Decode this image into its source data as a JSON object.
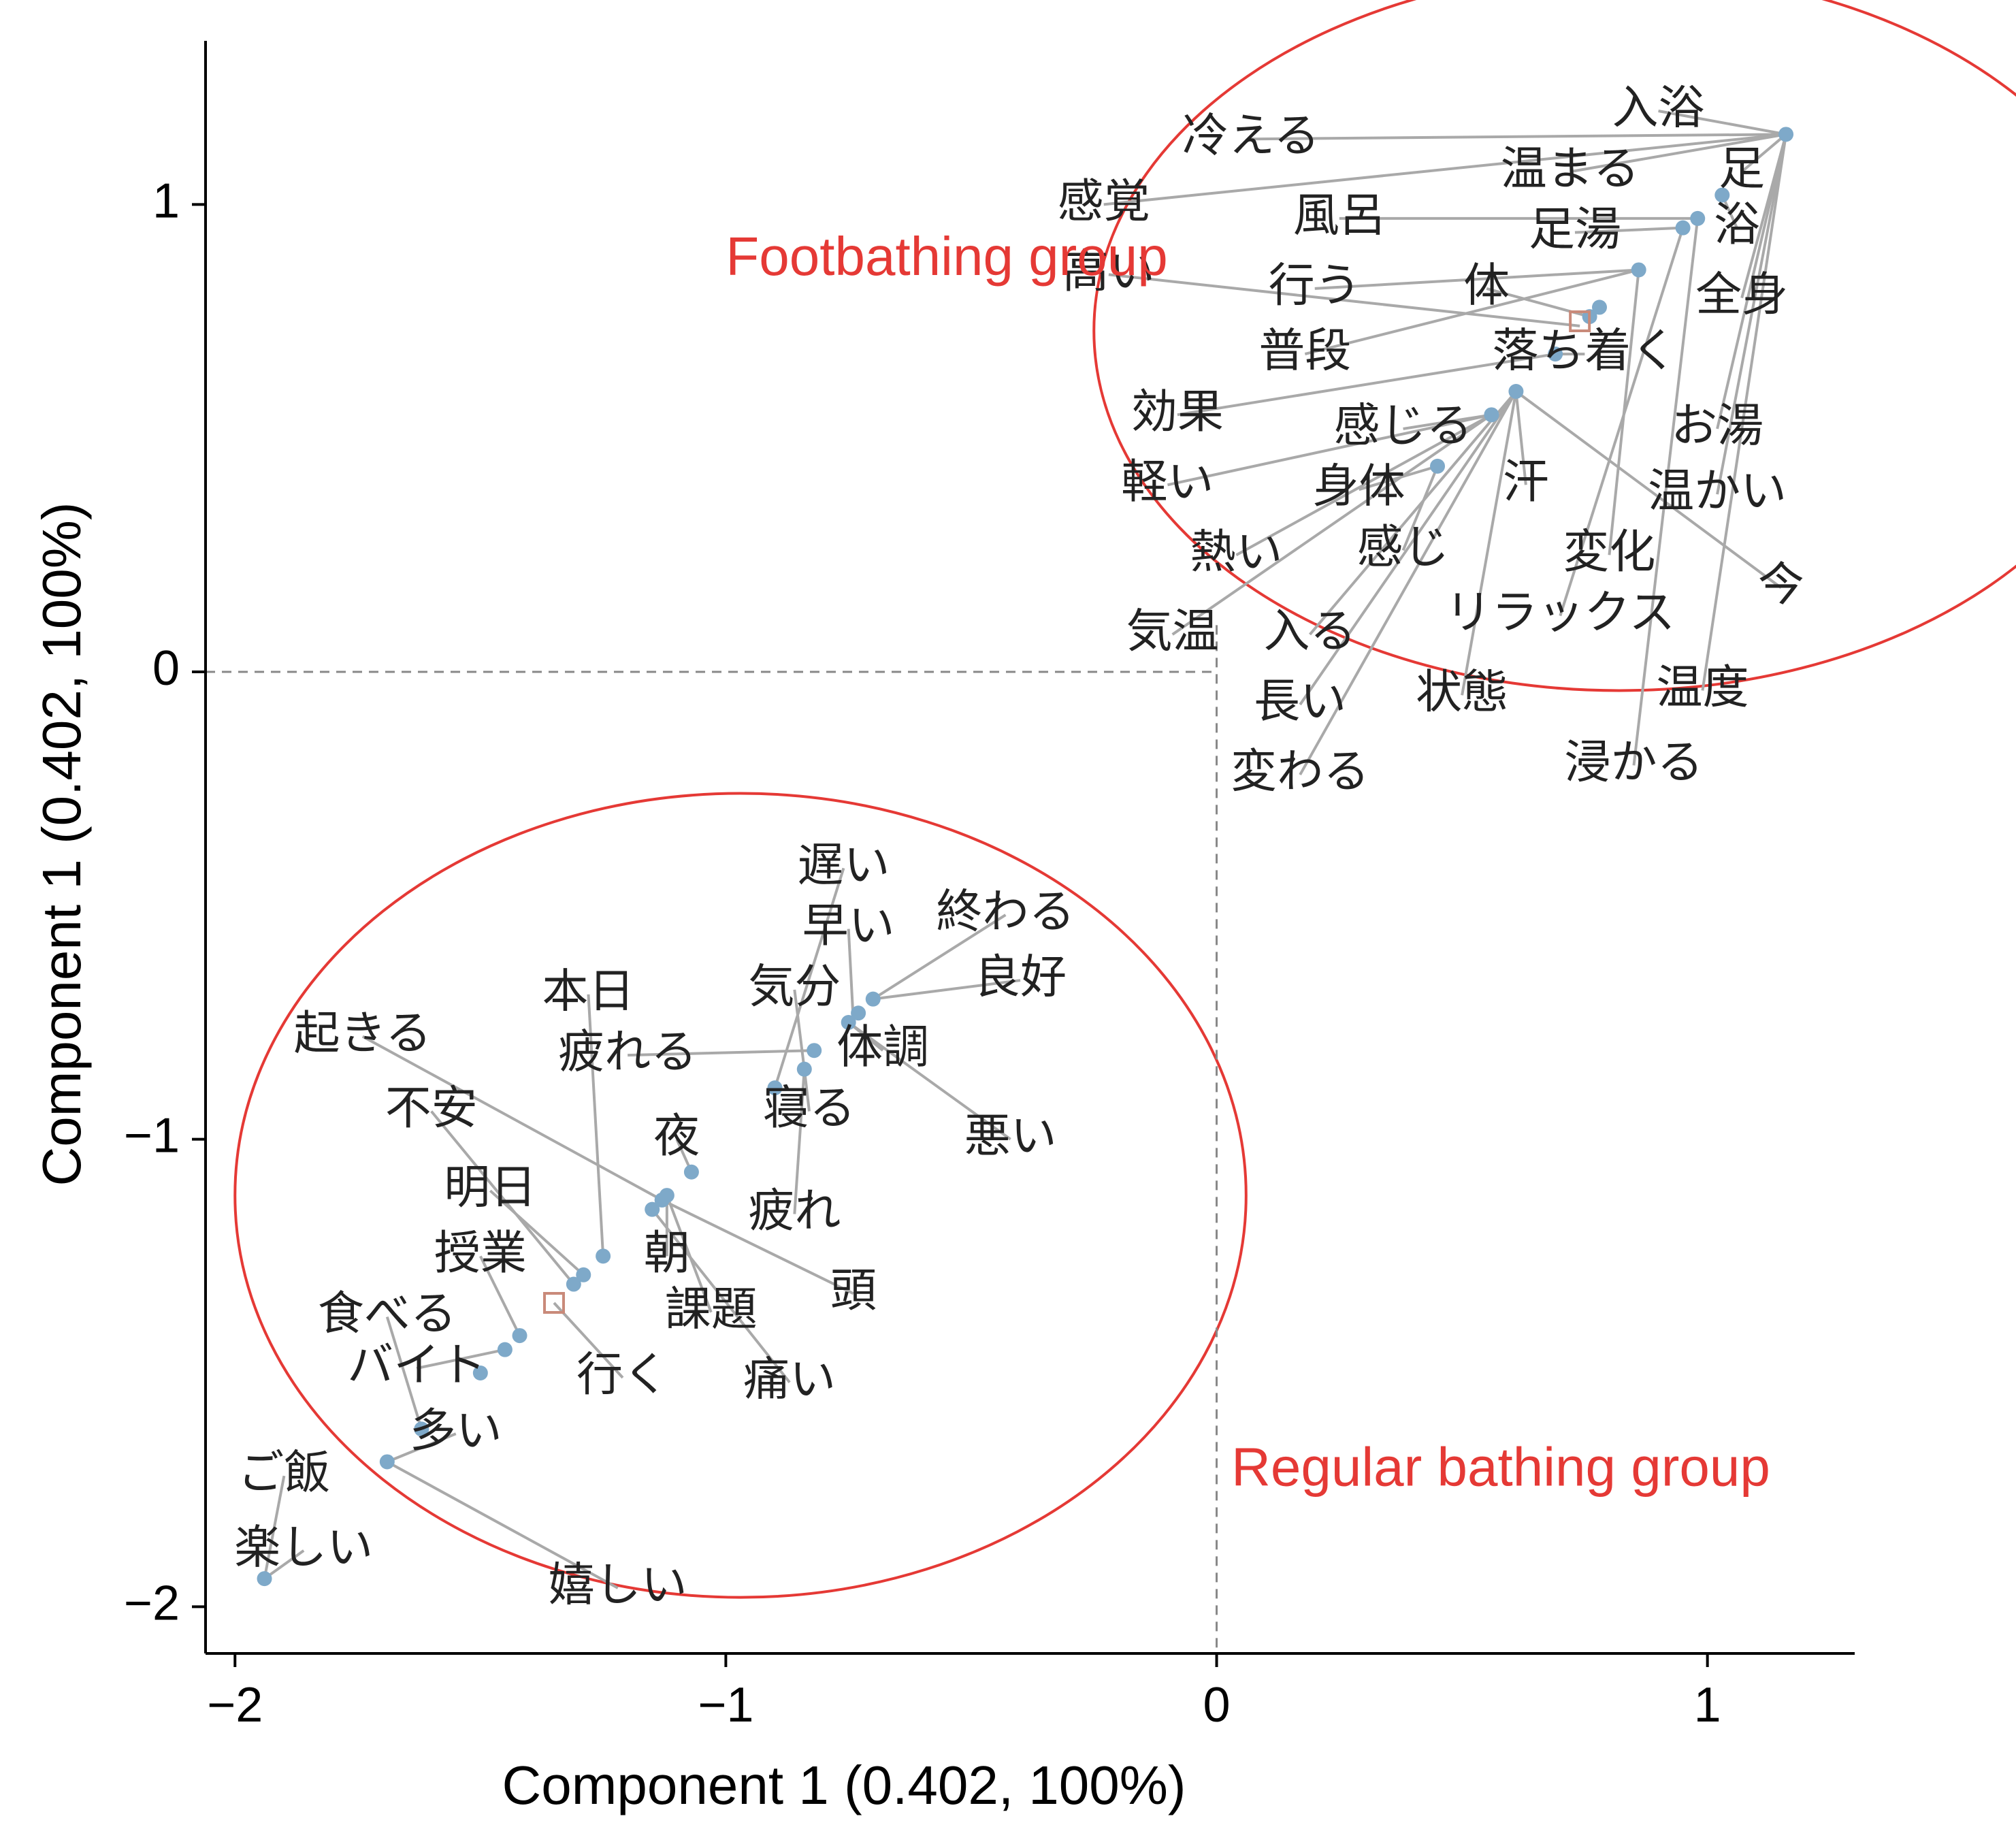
{
  "chart_data": {
    "type": "scatter",
    "title": "",
    "xlabel": "Component 1 (0.402, 100%)",
    "ylabel": "Component 1 (0.402, 100%)",
    "xlim": [
      -2.06,
      1.3
    ],
    "ylim": [
      -2.1,
      1.35
    ],
    "xticks": [
      -2,
      -1,
      0,
      1
    ],
    "yticks": [
      -2,
      -1,
      0,
      1
    ],
    "xtick_labels": [
      "−2",
      "−1",
      "0",
      "1"
    ],
    "ytick_labels": [
      "−2",
      "−1",
      "0",
      "1"
    ],
    "grid": false,
    "zero_lines": true,
    "colors": {
      "point": "#7ea9c9",
      "leader": "#a9a9a9",
      "group": "#e53935",
      "axis": "#000000"
    },
    "groups": [
      {
        "name": "Footbathing group",
        "center": [
          0.82,
          0.73
        ],
        "radius": [
          1.07,
          0.77
        ],
        "label_at": [
          -1.0,
          0.88
        ]
      },
      {
        "name": "Regular bathing group",
        "center": [
          -0.97,
          -1.12
        ],
        "radius": [
          1.03,
          0.86
        ],
        "label_at": [
          0.03,
          -1.71
        ]
      }
    ],
    "centroids": [
      [
        0.74,
        0.75
      ],
      [
        -1.35,
        -1.35
      ]
    ],
    "words": [
      {
        "text": "入浴",
        "x": 1.16,
        "y": 1.15,
        "lx": 0.9,
        "ly": 1.2
      },
      {
        "text": "冷える",
        "x": 1.16,
        "y": 1.15,
        "lx": 0.07,
        "ly": 1.14
      },
      {
        "text": "足",
        "x": 1.16,
        "y": 1.15,
        "lx": 1.07,
        "ly": 1.07
      },
      {
        "text": "温まる",
        "x": 1.16,
        "y": 1.15,
        "lx": 0.72,
        "ly": 1.07
      },
      {
        "text": "感覚",
        "x": 1.16,
        "y": 1.15,
        "lx": -0.23,
        "ly": 1.0
      },
      {
        "text": "風呂",
        "x": 0.98,
        "y": 0.97,
        "lx": 0.25,
        "ly": 0.97
      },
      {
        "text": "浴",
        "x": 1.03,
        "y": 1.02,
        "lx": 1.06,
        "ly": 0.95
      },
      {
        "text": "足湯",
        "x": 0.95,
        "y": 0.95,
        "lx": 0.73,
        "ly": 0.94
      },
      {
        "text": "高い",
        "x": 0.74,
        "y": 0.74,
        "lx": -0.22,
        "ly": 0.85
      },
      {
        "text": "行う",
        "x": 0.86,
        "y": 0.86,
        "lx": 0.2,
        "ly": 0.82
      },
      {
        "text": "体",
        "x": 0.76,
        "y": 0.76,
        "lx": 0.55,
        "ly": 0.82
      },
      {
        "text": "全身",
        "x": 1.16,
        "y": 1.15,
        "lx": 1.07,
        "ly": 0.8
      },
      {
        "text": "普段",
        "x": 0.86,
        "y": 0.86,
        "lx": 0.18,
        "ly": 0.68
      },
      {
        "text": "落ち着く",
        "x": 0.69,
        "y": 0.68,
        "lx": 0.75,
        "ly": 0.68
      },
      {
        "text": "効果",
        "x": 0.69,
        "y": 0.68,
        "lx": -0.08,
        "ly": 0.55
      },
      {
        "text": "感じる",
        "x": 0.56,
        "y": 0.55,
        "lx": 0.38,
        "ly": 0.52
      },
      {
        "text": "お湯",
        "x": 1.16,
        "y": 1.15,
        "lx": 1.02,
        "ly": 0.52
      },
      {
        "text": "軽い",
        "x": 0.56,
        "y": 0.55,
        "lx": -0.1,
        "ly": 0.4
      },
      {
        "text": "身体",
        "x": 0.45,
        "y": 0.44,
        "lx": 0.29,
        "ly": 0.39
      },
      {
        "text": "汗",
        "x": 0.61,
        "y": 0.6,
        "lx": 0.63,
        "ly": 0.4
      },
      {
        "text": "温かい",
        "x": 1.16,
        "y": 1.15,
        "lx": 1.02,
        "ly": 0.38
      },
      {
        "text": "熱い",
        "x": 0.56,
        "y": 0.55,
        "lx": 0.04,
        "ly": 0.25
      },
      {
        "text": "感じ",
        "x": 0.45,
        "y": 0.44,
        "lx": 0.38,
        "ly": 0.26
      },
      {
        "text": "変化",
        "x": 0.86,
        "y": 0.86,
        "lx": 0.8,
        "ly": 0.25
      },
      {
        "text": "今",
        "x": 0.61,
        "y": 0.6,
        "lx": 1.15,
        "ly": 0.18
      },
      {
        "text": "気温",
        "x": 0.56,
        "y": 0.55,
        "lx": -0.09,
        "ly": 0.08
      },
      {
        "text": "入る",
        "x": 0.61,
        "y": 0.6,
        "lx": 0.19,
        "ly": 0.08
      },
      {
        "text": "リラックス",
        "x": 0.95,
        "y": 0.95,
        "lx": 0.7,
        "ly": 0.12
      },
      {
        "text": "長い",
        "x": 0.61,
        "y": 0.6,
        "lx": 0.17,
        "ly": -0.07
      },
      {
        "text": "状態",
        "x": 0.61,
        "y": 0.6,
        "lx": 0.5,
        "ly": -0.05
      },
      {
        "text": "温度",
        "x": 1.16,
        "y": 1.15,
        "lx": 0.99,
        "ly": -0.04
      },
      {
        "text": "変わる",
        "x": 0.61,
        "y": 0.6,
        "lx": 0.17,
        "ly": -0.22
      },
      {
        "text": "浸かる",
        "x": 0.98,
        "y": 0.97,
        "lx": 0.85,
        "ly": -0.2
      },
      {
        "text": "遅い",
        "x": -0.9,
        "y": -0.89,
        "lx": -0.76,
        "ly": -0.42
      },
      {
        "text": "早い",
        "x": -0.74,
        "y": -0.75,
        "lx": -0.75,
        "ly": -0.55
      },
      {
        "text": "終わる",
        "x": -0.7,
        "y": -0.7,
        "lx": -0.43,
        "ly": -0.52
      },
      {
        "text": "気分",
        "x": -0.84,
        "y": -0.85,
        "lx": -0.86,
        "ly": -0.68
      },
      {
        "text": "良好",
        "x": -0.7,
        "y": -0.7,
        "lx": -0.4,
        "ly": -0.66
      },
      {
        "text": "本日",
        "x": -1.25,
        "y": -1.25,
        "lx": -1.28,
        "ly": -0.69
      },
      {
        "text": "起きる",
        "x": -1.13,
        "y": -1.13,
        "lx": -1.74,
        "ly": -0.78
      },
      {
        "text": "疲れる",
        "x": -0.82,
        "y": -0.81,
        "lx": -1.2,
        "ly": -0.82
      },
      {
        "text": "体調",
        "x": -0.75,
        "y": -0.75,
        "lx": -0.68,
        "ly": -0.81
      },
      {
        "text": "寝る",
        "x": -0.84,
        "y": -0.85,
        "lx": -0.83,
        "ly": -0.94
      },
      {
        "text": "不安",
        "x": -1.31,
        "y": -1.31,
        "lx": -1.6,
        "ly": -0.94
      },
      {
        "text": "悪い",
        "x": -0.75,
        "y": -0.75,
        "lx": -0.42,
        "ly": -1.0
      },
      {
        "text": "夜",
        "x": -1.07,
        "y": -1.07,
        "lx": -1.1,
        "ly": -1.0
      },
      {
        "text": "明日",
        "x": -1.29,
        "y": -1.29,
        "lx": -1.48,
        "ly": -1.11
      },
      {
        "text": "疲れ",
        "x": -0.84,
        "y": -0.85,
        "lx": -0.86,
        "ly": -1.16
      },
      {
        "text": "授業",
        "x": -1.42,
        "y": -1.42,
        "lx": -1.5,
        "ly": -1.25
      },
      {
        "text": "朝",
        "x": -1.12,
        "y": -1.12,
        "lx": -1.12,
        "ly": -1.25
      },
      {
        "text": "頭",
        "x": -1.13,
        "y": -1.13,
        "lx": -0.74,
        "ly": -1.33
      },
      {
        "text": "食べる",
        "x": -1.62,
        "y": -1.62,
        "lx": -1.69,
        "ly": -1.38
      },
      {
        "text": "課題",
        "x": -1.12,
        "y": -1.12,
        "lx": -1.03,
        "ly": -1.37
      },
      {
        "text": "バイト",
        "x": -1.45,
        "y": -1.45,
        "lx": -1.63,
        "ly": -1.49
      },
      {
        "text": "行く",
        "x": -1.35,
        "y": -1.35,
        "lx": -1.21,
        "ly": -1.51
      },
      {
        "text": "痛い",
        "x": -1.15,
        "y": -1.15,
        "lx": -0.87,
        "ly": -1.52
      },
      {
        "text": "多い",
        "x": -1.69,
        "y": -1.69,
        "lx": -1.55,
        "ly": -1.63
      },
      {
        "text": "ご飯",
        "x": -1.94,
        "y": -1.94,
        "lx": -1.9,
        "ly": -1.72
      },
      {
        "text": "楽しい",
        "x": -1.94,
        "y": -1.94,
        "lx": -1.86,
        "ly": -1.88
      },
      {
        "text": "嬉しい",
        "x": -1.69,
        "y": -1.69,
        "lx": -1.22,
        "ly": -1.96
      }
    ],
    "points": [
      [
        1.16,
        1.15
      ],
      [
        1.03,
        1.02
      ],
      [
        0.98,
        0.97
      ],
      [
        0.95,
        0.95
      ],
      [
        0.86,
        0.86
      ],
      [
        0.78,
        0.78
      ],
      [
        0.76,
        0.76
      ],
      [
        0.69,
        0.68
      ],
      [
        0.61,
        0.6
      ],
      [
        0.56,
        0.55
      ],
      [
        0.45,
        0.44
      ],
      [
        -0.7,
        -0.7
      ],
      [
        -0.73,
        -0.73
      ],
      [
        -0.75,
        -0.75
      ],
      [
        -0.82,
        -0.81
      ],
      [
        -0.84,
        -0.85
      ],
      [
        -0.9,
        -0.89
      ],
      [
        -1.07,
        -1.07
      ],
      [
        -1.12,
        -1.12
      ],
      [
        -1.13,
        -1.13
      ],
      [
        -1.15,
        -1.15
      ],
      [
        -1.25,
        -1.25
      ],
      [
        -1.29,
        -1.29
      ],
      [
        -1.31,
        -1.31
      ],
      [
        -1.42,
        -1.42
      ],
      [
        -1.45,
        -1.45
      ],
      [
        -1.5,
        -1.5
      ],
      [
        -1.62,
        -1.62
      ],
      [
        -1.69,
        -1.69
      ],
      [
        -1.94,
        -1.94
      ]
    ]
  }
}
